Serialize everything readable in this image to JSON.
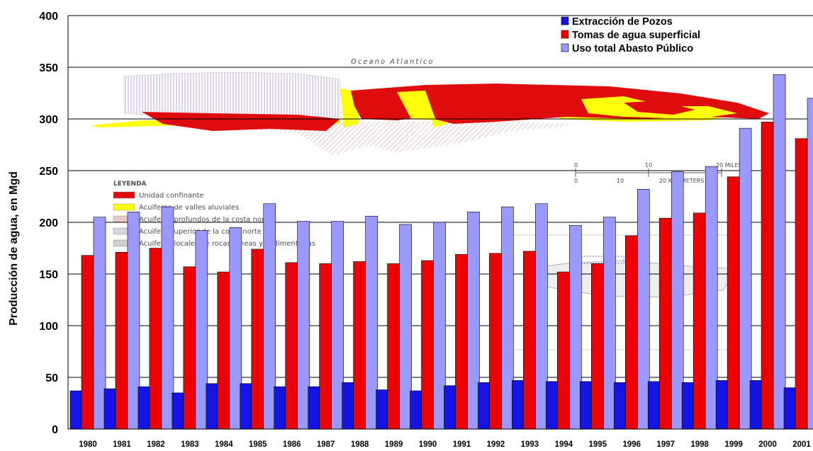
{
  "chart_data": {
    "type": "bar",
    "title": "",
    "ylabel": "Producción de agua, en Mgd",
    "xlabel": "",
    "ylim": [
      0,
      400
    ],
    "yticks": [
      0,
      50,
      100,
      150,
      200,
      250,
      300,
      350,
      400
    ],
    "grid": true,
    "legend_position": "top-right",
    "categories": [
      "1980",
      "1981",
      "1982",
      "1983",
      "1984",
      "1985",
      "1986",
      "1987",
      "1988",
      "1989",
      "1990",
      "1991",
      "1992",
      "1993",
      "1994",
      "1995",
      "1996",
      "1997",
      "1998",
      "1999",
      "2000",
      "2001"
    ],
    "series": [
      {
        "name": "Extracción de Pozos",
        "color": "#1414e6",
        "values": [
          37,
          39,
          41,
          35,
          44,
          44,
          41,
          41,
          45,
          38,
          37,
          42,
          45,
          47,
          46,
          46,
          45,
          46,
          45,
          47,
          47,
          40
        ]
      },
      {
        "name": "Tomas de agua superficial",
        "color": "#ee0000",
        "values": [
          168,
          171,
          175,
          157,
          152,
          174,
          161,
          160,
          162,
          160,
          163,
          169,
          170,
          172,
          152,
          160,
          187,
          204,
          209,
          244,
          297,
          281
        ]
      },
      {
        "name": "Uso total Abasto Público",
        "color": "#9999ff",
        "values": [
          205,
          210,
          215,
          192,
          195,
          218,
          201,
          201,
          206,
          198,
          200,
          210,
          215,
          218,
          197,
          205,
          232,
          249,
          254,
          291,
          343,
          320
        ]
      }
    ]
  },
  "inset_map": {
    "ocean_label": "Oceano Atlantico",
    "legend_title": "LEYENDA",
    "legend_items": [
      {
        "label": "Unidad confinante",
        "color": "#dd0000"
      },
      {
        "label": "Acuiferos de valles aluviales",
        "color": "#ffff00"
      },
      {
        "label": "Acuiferos profundos de la costa norte",
        "color": "#e8c8c8"
      },
      {
        "label": "Acuifero superior de la costa norte",
        "color": "#d8d0e0"
      },
      {
        "label": "Acuiferos locales de rocas igneas y sedimentarias",
        "color": "#cccccc"
      }
    ],
    "scale_miles": [
      "0",
      "10",
      "20 MILES"
    ],
    "scale_km": [
      "0",
      "10",
      "20 KILOMETERS"
    ]
  }
}
